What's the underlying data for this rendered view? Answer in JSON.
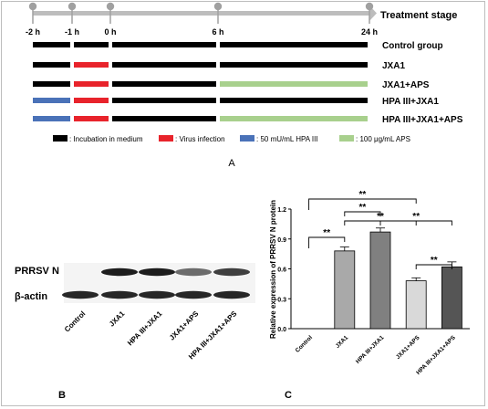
{
  "panel_a": {
    "timeline_label": "Treatment stage",
    "time_ticks": [
      "-2 h",
      "-1 h",
      "0 h",
      "6 h",
      "24 h"
    ],
    "groups": [
      {
        "label": "Control group",
        "segments": [
          "medium",
          "medium",
          "medium",
          "medium"
        ]
      },
      {
        "label": "JXA1",
        "segments": [
          "medium",
          "virus",
          "medium",
          "medium"
        ]
      },
      {
        "label": "JXA1+APS",
        "segments": [
          "medium",
          "virus",
          "medium",
          "aps"
        ]
      },
      {
        "label": "HPA III+JXA1",
        "segments": [
          "hpa",
          "virus",
          "medium",
          "medium"
        ]
      },
      {
        "label": "HPA III+JXA1+APS",
        "segments": [
          "hpa",
          "virus",
          "medium",
          "aps"
        ]
      }
    ],
    "legend": [
      {
        "key": "medium",
        "label": ": Incubation in medium",
        "color": "#000000"
      },
      {
        "key": "virus",
        "label": ": Virus infection",
        "color": "#e8232b"
      },
      {
        "key": "hpa",
        "label": ": 50 mU/mL  HPA III",
        "color": "#4a72b8"
      },
      {
        "key": "aps",
        "label": ": 100 μg/mL APS",
        "color": "#a8d08d"
      }
    ],
    "panel_label": "A"
  },
  "panel_b": {
    "row_labels": [
      "PRRSV N",
      "β-actin"
    ],
    "lanes": [
      "Control",
      "JXA1",
      "HPA III+JXA1",
      "JXA1+APS",
      "HPA III+JXA1+APS"
    ],
    "prrsv_band_intensity": [
      0.0,
      0.95,
      0.95,
      0.6,
      0.8
    ],
    "actin_band_intensity": [
      0.9,
      0.9,
      0.9,
      0.9,
      0.9
    ],
    "panel_label": "B"
  },
  "panel_c": {
    "panel_label": "C",
    "significance": [
      "**",
      "**",
      "**",
      "**",
      "**",
      "**"
    ]
  },
  "chart_data": {
    "type": "bar",
    "categories": [
      "Control",
      "JXA1",
      "HPA III+JXA1",
      "JXA1+APS",
      "HPA III+JXA1+APS"
    ],
    "values": [
      0.0,
      0.78,
      0.97,
      0.48,
      0.62
    ],
    "errors": [
      0.0,
      0.04,
      0.04,
      0.03,
      0.05
    ],
    "bar_colors": [
      "#ffffff",
      "#a9a9a9",
      "#808080",
      "#d9d9d9",
      "#555555"
    ],
    "ylabel": "Relative expression of PRRSV N protein",
    "ylim": [
      0,
      1.2
    ],
    "yticks": [
      "0.0",
      "0.3",
      "0.6",
      "0.9",
      "1.2"
    ],
    "comparisons": [
      {
        "a": 0,
        "b": 1,
        "label": "**"
      },
      {
        "a": 0,
        "b": 3,
        "label": "**"
      },
      {
        "a": 1,
        "b": 3,
        "label": "**"
      },
      {
        "a": 1,
        "b": 2,
        "label": "**"
      },
      {
        "a": 2,
        "b": 4,
        "label": "**"
      },
      {
        "a": 3,
        "b": 4,
        "label": "**"
      }
    ]
  }
}
